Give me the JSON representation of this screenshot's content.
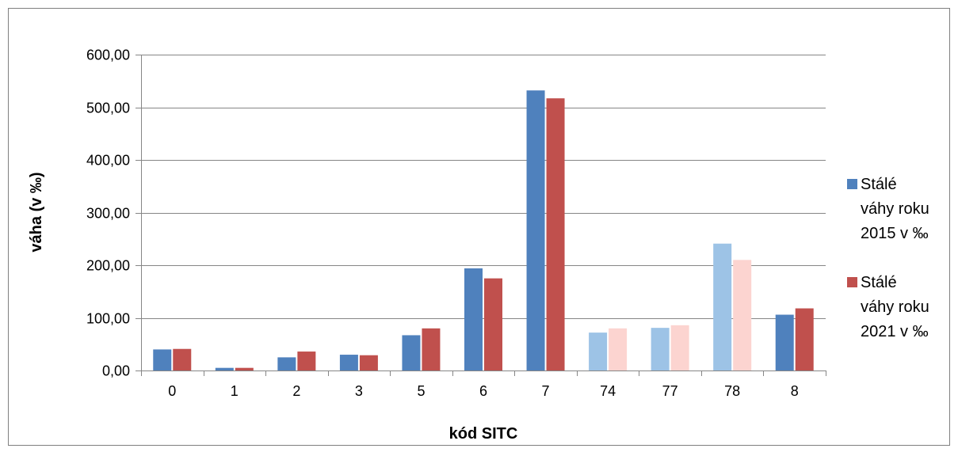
{
  "chart_data": {
    "type": "bar",
    "title": "",
    "xlabel": "kód SITC",
    "ylabel": "váha (v ‰)",
    "categories": [
      "0",
      "1",
      "2",
      "3",
      "5",
      "6",
      "7",
      "74",
      "77",
      "78",
      "8"
    ],
    "highlighted_categories": [
      "74",
      "77",
      "78"
    ],
    "ylim": [
      0,
      600
    ],
    "yticks": [
      "0,00",
      "100,00",
      "200,00",
      "300,00",
      "400,00",
      "500,00",
      "600,00"
    ],
    "ytick_values": [
      0,
      100,
      200,
      300,
      400,
      500,
      600
    ],
    "grid": true,
    "legend_position": "right",
    "series": [
      {
        "name": "Stálé váhy roku 2015 v ‰",
        "name_lines": [
          "Stálé",
          "váhy roku",
          "2015 v ‰"
        ],
        "color": "#4f81bd",
        "light_color": "#9dc3e6",
        "values": [
          40,
          5,
          25,
          30,
          67,
          194,
          532,
          72,
          81,
          241,
          106
        ]
      },
      {
        "name": "Stálé váhy roku 2021 v ‰",
        "name_lines": [
          "Stálé",
          "váhy roku",
          "2021 v ‰"
        ],
        "color": "#c0504d",
        "light_color": "#fcd4d0",
        "values": [
          41,
          5,
          36,
          29,
          80,
          175,
          517,
          80,
          86,
          210,
          118
        ]
      }
    ]
  }
}
